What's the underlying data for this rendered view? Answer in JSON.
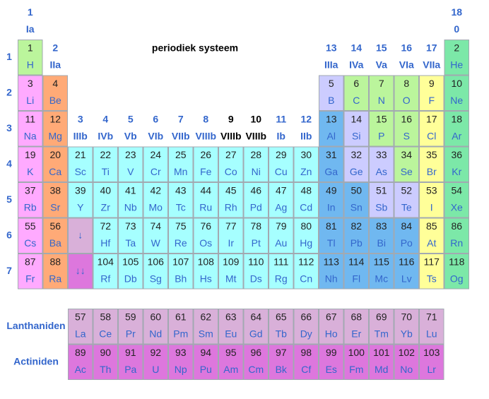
{
  "title": "periodiek systeem",
  "text_color": "#222222",
  "symbol_color": "#3366cc",
  "label_color": "#3366cc",
  "group_headers": [
    {
      "number": 1,
      "label": "Ia",
      "color": "#3366cc"
    },
    {
      "number": 2,
      "label": "IIa",
      "color": "#3366cc"
    },
    {
      "number": 3,
      "label": "IIIb",
      "color": "#3366cc"
    },
    {
      "number": 4,
      "label": "IVb",
      "color": "#3366cc"
    },
    {
      "number": 5,
      "label": "Vb",
      "color": "#3366cc"
    },
    {
      "number": 6,
      "label": "VIb",
      "color": "#3366cc"
    },
    {
      "number": 7,
      "label": "VIIb",
      "color": "#3366cc"
    },
    {
      "number": 8,
      "label": "VIIIb",
      "color": "#3366cc"
    },
    {
      "number": 9,
      "label": "VIIIb",
      "color": "#000000"
    },
    {
      "number": 10,
      "label": "VIIIb",
      "color": "#000000"
    },
    {
      "number": 11,
      "label": "Ib",
      "color": "#3366cc"
    },
    {
      "number": 12,
      "label": "IIb",
      "color": "#3366cc"
    },
    {
      "number": 13,
      "label": "IIIa",
      "color": "#3366cc"
    },
    {
      "number": 14,
      "label": "IVa",
      "color": "#3366cc"
    },
    {
      "number": 15,
      "label": "Va",
      "color": "#3366cc"
    },
    {
      "number": 16,
      "label": "VIa",
      "color": "#3366cc"
    },
    {
      "number": 17,
      "label": "VIIa",
      "color": "#3366cc"
    },
    {
      "number": 18,
      "label": "0",
      "color": "#3366cc"
    }
  ],
  "period_labels": [
    1,
    2,
    3,
    4,
    5,
    6,
    7
  ],
  "rows": [
    [
      {
        "number": 1,
        "symbol": "H",
        "color": "#bbf59c"
      },
      null,
      null,
      null,
      null,
      null,
      null,
      null,
      null,
      null,
      null,
      null,
      null,
      null,
      null,
      null,
      null,
      {
        "number": 2,
        "symbol": "He",
        "color": "#7ce8a8"
      }
    ],
    [
      {
        "number": 3,
        "symbol": "Li",
        "color": "#ffaaff"
      },
      {
        "number": 4,
        "symbol": "Be",
        "color": "#ffaa77"
      },
      null,
      null,
      null,
      null,
      null,
      null,
      null,
      null,
      null,
      null,
      {
        "number": 5,
        "symbol": "B",
        "color": "#ccccff"
      },
      {
        "number": 6,
        "symbol": "C",
        "color": "#bbf59c"
      },
      {
        "number": 7,
        "symbol": "N",
        "color": "#bbf59c"
      },
      {
        "number": 8,
        "symbol": "O",
        "color": "#bbf59c"
      },
      {
        "number": 9,
        "symbol": "F",
        "color": "#ffff99"
      },
      {
        "number": 10,
        "symbol": "Ne",
        "color": "#7ce8a8"
      }
    ],
    [
      {
        "number": 11,
        "symbol": "Na",
        "color": "#ffaaff"
      },
      {
        "number": 12,
        "symbol": "Mg",
        "color": "#ffaa77"
      },
      null,
      null,
      null,
      null,
      null,
      null,
      null,
      null,
      null,
      null,
      {
        "number": 13,
        "symbol": "Al",
        "color": "#70b8f0"
      },
      {
        "number": 14,
        "symbol": "Si",
        "color": "#ccccff"
      },
      {
        "number": 15,
        "symbol": "P",
        "color": "#bbf59c"
      },
      {
        "number": 16,
        "symbol": "S",
        "color": "#bbf59c"
      },
      {
        "number": 17,
        "symbol": "Cl",
        "color": "#ffff99"
      },
      {
        "number": 18,
        "symbol": "Ar",
        "color": "#7ce8a8"
      }
    ],
    [
      {
        "number": 19,
        "symbol": "K",
        "color": "#ffaaff"
      },
      {
        "number": 20,
        "symbol": "Ca",
        "color": "#ffaa77"
      },
      {
        "number": 21,
        "symbol": "Sc",
        "color": "#a6ffff"
      },
      {
        "number": 22,
        "symbol": "Ti",
        "color": "#a6ffff"
      },
      {
        "number": 23,
        "symbol": "V",
        "color": "#a6ffff"
      },
      {
        "number": 24,
        "symbol": "Cr",
        "color": "#a6ffff"
      },
      {
        "number": 25,
        "symbol": "Mn",
        "color": "#a6ffff"
      },
      {
        "number": 26,
        "symbol": "Fe",
        "color": "#a6ffff"
      },
      {
        "number": 27,
        "symbol": "Co",
        "color": "#a6ffff"
      },
      {
        "number": 28,
        "symbol": "Ni",
        "color": "#a6ffff"
      },
      {
        "number": 29,
        "symbol": "Cu",
        "color": "#a6ffff"
      },
      {
        "number": 30,
        "symbol": "Zn",
        "color": "#a6ffff"
      },
      {
        "number": 31,
        "symbol": "Ga",
        "color": "#70b8f0"
      },
      {
        "number": 32,
        "symbol": "Ge",
        "color": "#ccccff"
      },
      {
        "number": 33,
        "symbol": "As",
        "color": "#ccccff"
      },
      {
        "number": 34,
        "symbol": "Se",
        "color": "#bbf59c"
      },
      {
        "number": 35,
        "symbol": "Br",
        "color": "#ffff99"
      },
      {
        "number": 36,
        "symbol": "Kr",
        "color": "#7ce8a8"
      }
    ],
    [
      {
        "number": 37,
        "symbol": "Rb",
        "color": "#ffaaff"
      },
      {
        "number": 38,
        "symbol": "Sr",
        "color": "#ffaa77"
      },
      {
        "number": 39,
        "symbol": "Y",
        "color": "#a6ffff"
      },
      {
        "number": 40,
        "symbol": "Zr",
        "color": "#a6ffff"
      },
      {
        "number": 41,
        "symbol": "Nb",
        "color": "#a6ffff"
      },
      {
        "number": 42,
        "symbol": "Mo",
        "color": "#a6ffff"
      },
      {
        "number": 43,
        "symbol": "Tc",
        "color": "#a6ffff"
      },
      {
        "number": 44,
        "symbol": "Ru",
        "color": "#a6ffff"
      },
      {
        "number": 45,
        "symbol": "Rh",
        "color": "#a6ffff"
      },
      {
        "number": 46,
        "symbol": "Pd",
        "color": "#a6ffff"
      },
      {
        "number": 47,
        "symbol": "Ag",
        "color": "#a6ffff"
      },
      {
        "number": 48,
        "symbol": "Cd",
        "color": "#a6ffff"
      },
      {
        "number": 49,
        "symbol": "In",
        "color": "#70b8f0"
      },
      {
        "number": 50,
        "symbol": "Sn",
        "color": "#70b8f0"
      },
      {
        "number": 51,
        "symbol": "Sb",
        "color": "#ccccff"
      },
      {
        "number": 52,
        "symbol": "Te",
        "color": "#ccccff"
      },
      {
        "number": 53,
        "symbol": "I",
        "color": "#ffff99"
      },
      {
        "number": 54,
        "symbol": "Xe",
        "color": "#7ce8a8"
      }
    ],
    [
      {
        "number": 55,
        "symbol": "Cs",
        "color": "#ffaaff"
      },
      {
        "number": 56,
        "symbol": "Ba",
        "color": "#ffaa77"
      },
      {
        "symbol": "↓",
        "color": "#d9b0d9"
      },
      {
        "number": 72,
        "symbol": "Hf",
        "color": "#a6ffff"
      },
      {
        "number": 73,
        "symbol": "Ta",
        "color": "#a6ffff"
      },
      {
        "number": 74,
        "symbol": "W",
        "color": "#a6ffff"
      },
      {
        "number": 75,
        "symbol": "Re",
        "color": "#a6ffff"
      },
      {
        "number": 76,
        "symbol": "Os",
        "color": "#a6ffff"
      },
      {
        "number": 77,
        "symbol": "Ir",
        "color": "#a6ffff"
      },
      {
        "number": 78,
        "symbol": "Pt",
        "color": "#a6ffff"
      },
      {
        "number": 79,
        "symbol": "Au",
        "color": "#a6ffff"
      },
      {
        "number": 80,
        "symbol": "Hg",
        "color": "#a6ffff"
      },
      {
        "number": 81,
        "symbol": "Tl",
        "color": "#70b8f0"
      },
      {
        "number": 82,
        "symbol": "Pb",
        "color": "#70b8f0"
      },
      {
        "number": 83,
        "symbol": "Bi",
        "color": "#70b8f0"
      },
      {
        "number": 84,
        "symbol": "Po",
        "color": "#70b8f0"
      },
      {
        "number": 85,
        "symbol": "At",
        "color": "#ffff99"
      },
      {
        "number": 86,
        "symbol": "Rn",
        "color": "#7ce8a8"
      }
    ],
    [
      {
        "number": 87,
        "symbol": "Fr",
        "color": "#ffaaff"
      },
      {
        "number": 88,
        "symbol": "Ra",
        "color": "#ffaa77"
      },
      {
        "symbol": "↓↓",
        "color": "#dd77dd"
      },
      {
        "number": 104,
        "symbol": "Rf",
        "color": "#a6ffff"
      },
      {
        "number": 105,
        "symbol": "Db",
        "color": "#a6ffff"
      },
      {
        "number": 106,
        "symbol": "Sg",
        "color": "#a6ffff"
      },
      {
        "number": 107,
        "symbol": "Bh",
        "color": "#a6ffff"
      },
      {
        "number": 108,
        "symbol": "Hs",
        "color": "#a6ffff"
      },
      {
        "number": 109,
        "symbol": "Mt",
        "color": "#a6ffff"
      },
      {
        "number": 110,
        "symbol": "Ds",
        "color": "#a6ffff"
      },
      {
        "number": 111,
        "symbol": "Rg",
        "color": "#a6ffff"
      },
      {
        "number": 112,
        "symbol": "Cn",
        "color": "#a6ffff"
      },
      {
        "number": 113,
        "symbol": "Nh",
        "color": "#70b8f0"
      },
      {
        "number": 114,
        "symbol": "Fl",
        "color": "#70b8f0"
      },
      {
        "number": 115,
        "symbol": "Mc",
        "color": "#70b8f0"
      },
      {
        "number": 116,
        "symbol": "Lv",
        "color": "#70b8f0"
      },
      {
        "number": 117,
        "symbol": "Ts",
        "color": "#ffff99"
      },
      {
        "number": 118,
        "symbol": "Og",
        "color": "#7ce8a8"
      }
    ]
  ],
  "series": [
    {
      "name": "Lanthaniden",
      "color": "#d9b0d9",
      "cells": [
        {
          "number": 57,
          "symbol": "La"
        },
        {
          "number": 58,
          "symbol": "Ce"
        },
        {
          "number": 59,
          "symbol": "Pr"
        },
        {
          "number": 60,
          "symbol": "Nd"
        },
        {
          "number": 61,
          "symbol": "Pm"
        },
        {
          "number": 62,
          "symbol": "Sm"
        },
        {
          "number": 63,
          "symbol": "Eu"
        },
        {
          "number": 64,
          "symbol": "Gd"
        },
        {
          "number": 65,
          "symbol": "Tb"
        },
        {
          "number": 66,
          "symbol": "Dy"
        },
        {
          "number": 67,
          "symbol": "Ho"
        },
        {
          "number": 68,
          "symbol": "Er"
        },
        {
          "number": 69,
          "symbol": "Tm"
        },
        {
          "number": 70,
          "symbol": "Yb"
        },
        {
          "number": 71,
          "symbol": "Lu"
        }
      ]
    },
    {
      "name": "Actiniden",
      "color": "#dd77dd",
      "cells": [
        {
          "number": 89,
          "symbol": "Ac"
        },
        {
          "number": 90,
          "symbol": "Th"
        },
        {
          "number": 91,
          "symbol": "Pa"
        },
        {
          "number": 92,
          "symbol": "U"
        },
        {
          "number": 93,
          "symbol": "Np"
        },
        {
          "number": 94,
          "symbol": "Pu"
        },
        {
          "number": 95,
          "symbol": "Am"
        },
        {
          "number": 96,
          "symbol": "Cm"
        },
        {
          "number": 97,
          "symbol": "Bk"
        },
        {
          "number": 98,
          "symbol": "Cf"
        },
        {
          "number": 99,
          "symbol": "Es"
        },
        {
          "number": 100,
          "symbol": "Fm"
        },
        {
          "number": 101,
          "symbol": "Md"
        },
        {
          "number": 102,
          "symbol": "No"
        },
        {
          "number": 103,
          "symbol": "Lr"
        }
      ]
    }
  ]
}
